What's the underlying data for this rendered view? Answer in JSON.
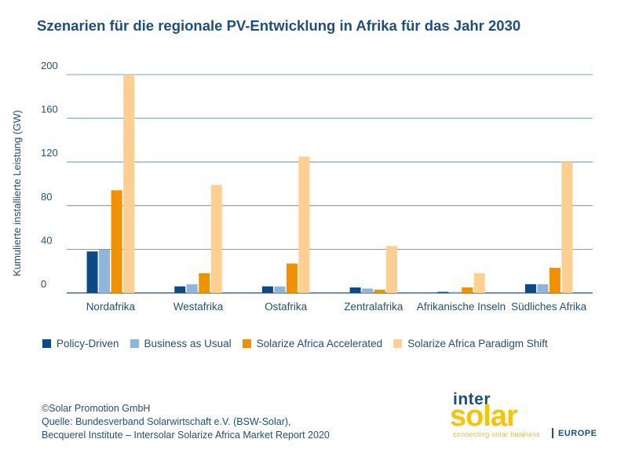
{
  "chart_data": {
    "type": "bar",
    "title": "Szenarien für die regionale PV-Entwicklung in Afrika für das Jahr 2030",
    "ylabel": "Kumulierte installierte Leistung (GW)",
    "xlabel": "",
    "ylim": [
      0,
      200
    ],
    "yticks": [
      0,
      40,
      80,
      120,
      160,
      200
    ],
    "grid": true,
    "legend_position": "bottom",
    "categories": [
      "Nordafrika",
      "Westafrika",
      "Ostafrika",
      "Zentralafrika",
      "Afrikanische Inseln",
      "Südliches Afrika"
    ],
    "series": [
      {
        "name": "Policy-Driven",
        "color": "#0b4a86",
        "values": [
          38,
          6,
          6,
          5,
          1,
          8
        ]
      },
      {
        "name": "Business as Usual",
        "color": "#8fb5dc",
        "values": [
          40,
          8,
          6,
          4,
          1,
          8
        ]
      },
      {
        "name": "Solarize Africa Accelerated",
        "color": "#f29100",
        "values": [
          94,
          18,
          27,
          3,
          5,
          23
        ]
      },
      {
        "name": "Solarize Africa Paradigm Shift",
        "color": "#fdd092",
        "values": [
          200,
          99,
          125,
          43,
          18,
          120
        ]
      }
    ]
  },
  "credits": {
    "line1": "©Solar Promotion GmbH",
    "line2": "Quelle: Bundesverband Solarwirtschaft e.V. (BSW-Solar),",
    "line3": "Becquerel Institute – Intersolar Solarize Africa Market Report 2020"
  },
  "logo": {
    "inter": "inter",
    "solar": "solar",
    "tagline": "connecting solar business",
    "europe": "EUROPE"
  },
  "colors": {
    "axis": "#1f4f7a",
    "grid": "#4a80b0",
    "title": "#1c4f80",
    "logo_yellow": "#f6c400"
  }
}
